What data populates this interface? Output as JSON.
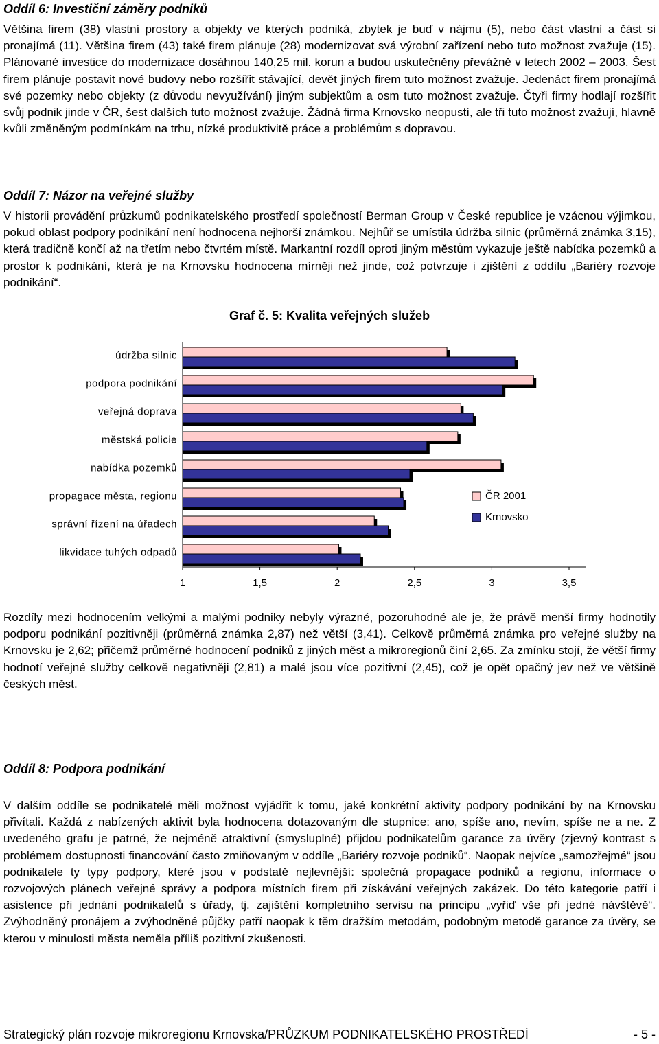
{
  "sections": [
    {
      "heading": "Oddíl 6: Investiční záměry podniků",
      "paragraphs": [
        "Většina firem (38) vlastní prostory a objekty ve kterých podniká, zbytek je buď v nájmu (5), nebo část vlastní a část si pronajímá (11). Většina firem (43) také firem plánuje (28) modernizovat svá výrobní zařízení nebo tuto možnost zvažuje (15). Plánované investice do modernizace dosáhnou 140,25 mil. korun a budou uskutečněny převážně v letech 2002 – 2003. Šest firem plánuje postavit nové budovy nebo rozšířit stávající, devět jiných firem tuto možnost zvažuje. Jedenáct firem pronajímá své pozemky nebo objekty (z důvodu nevyužívání) jiným subjektům a osm tuto možnost zvažuje. Čtyři firmy hodlají rozšířit svůj podnik jinde v ČR, šest dalších tuto možnost zvažuje. Žádná firma Krnovsko neopustí, ale tři tuto možnost zvažují, hlavně kvůli změněným podmínkám na trhu, nízké produktivitě práce a problémům s dopravou."
      ]
    },
    {
      "heading": "Oddíl 7: Názor na veřejné služby",
      "paragraphs": [
        "V historii provádění průzkumů podnikatelského prostředí společností Berman Group v České republice je vzácnou výjimkou, pokud oblast podpory podnikání není hodnocena nejhorší známkou. Nejhůř se umístila údržba silnic (průměrná známka 3,15), která tradičně končí až na třetím nebo čtvrtém místě. Markantní rozdíl oproti jiným městům vykazuje ještě nabídka pozemků a prostor k podnikání, která je na Krnovsku hodnocena mírněji než jinde, což potvrzuje i zjištění z oddílu „Bariéry rozvoje podnikání“.",
        "Rozdíly mezi hodnocením velkými a malými podniky nebyly výrazné, pozoruhodné ale je, že právě menší firmy hodnotily podporu podnikání pozitivněji (průměrná známka 2,87) než větší (3,41). Celkově průměrná známka pro veřejné služby na Krnovsku je 2,62; přičemž průměrné hodnocení podniků z jiných měst a mikroregionů činí 2,65. Za zmínku stojí, že větší firmy hodnotí veřejné služby celkově negativněji (2,81) a malé jsou více pozitivní (2,45), což je opět opačný jev než ve většině českých měst."
      ]
    },
    {
      "heading": "Oddíl 8: Podpora podnikání",
      "paragraphs": [
        "V dalším oddíle se podnikatelé měli možnost vyjádřit k tomu, jaké konkrétní aktivity podpory podnikání by na Krnovsku přivítali. Každá z nabízených aktivit byla hodnocena dotazovaným dle stupnice: ano, spíše ano, nevím, spíše ne a ne. Z uvedeného grafu je patrné, že nejméně atraktivní (smysluplné) přijdou podnikatelům garance za úvěry (zjevný kontrast s problémem dostupnosti financování často zmiňovaným v oddíle „Bariéry rozvoje podniků“. Naopak nejvíce „samozřejmé“ jsou podnikatele ty typy podpory, které jsou v podstatě nejlevnější: společná propagace podniků a regionu, informace o rozvojových plánech veřejné správy a podpora místních firem při získávání veřejných zakázek. Do této kategorie patří i asistence při jednání podnikatelů s úřady, tj. zajištění kompletního servisu na principu „vyřiď vše při jedné návštěvě“. Zvýhodněný pronájem a zvýhodněné půjčky patří naopak k těm dražším metodám, podobným metodě garance za úvěry, se kterou v minulosti města neměla příliš pozitivní zkušenosti."
      ]
    }
  ],
  "chart_data": {
    "type": "bar",
    "orientation": "horizontal",
    "title": "Graf č. 5: Kvalita veřejných služeb",
    "categories": [
      "údržba silnic",
      "podpora podnikání",
      "veřejná doprava",
      "městská policie",
      "nabídka pozemků",
      "propagace města, regionu",
      "správní řízení na úřadech",
      "likvidace tuhých odpadů"
    ],
    "series": [
      {
        "name": "ČR 2001",
        "color": "#ffcccc",
        "values": [
          2.71,
          3.27,
          2.8,
          2.78,
          3.06,
          2.41,
          2.24,
          2.01
        ]
      },
      {
        "name": "Krnovsko",
        "color": "#333399",
        "values": [
          3.15,
          3.07,
          2.88,
          2.58,
          2.47,
          2.43,
          2.33,
          2.15
        ]
      }
    ],
    "xlim": [
      1,
      3.5
    ],
    "xticks": [
      1,
      {
        "value": 1.5,
        "label": "1,5"
      },
      2,
      {
        "value": 2.5,
        "label": "2,5"
      },
      3,
      {
        "value": 3.5,
        "label": "3,5"
      }
    ],
    "legend": "right"
  },
  "footer": {
    "text": "Strategický plán rozvoje mikroregionu Krnovska/PRŮZKUM PODNIKATELSKÉHO PROSTŘEDÍ",
    "page": "- 5 -"
  }
}
